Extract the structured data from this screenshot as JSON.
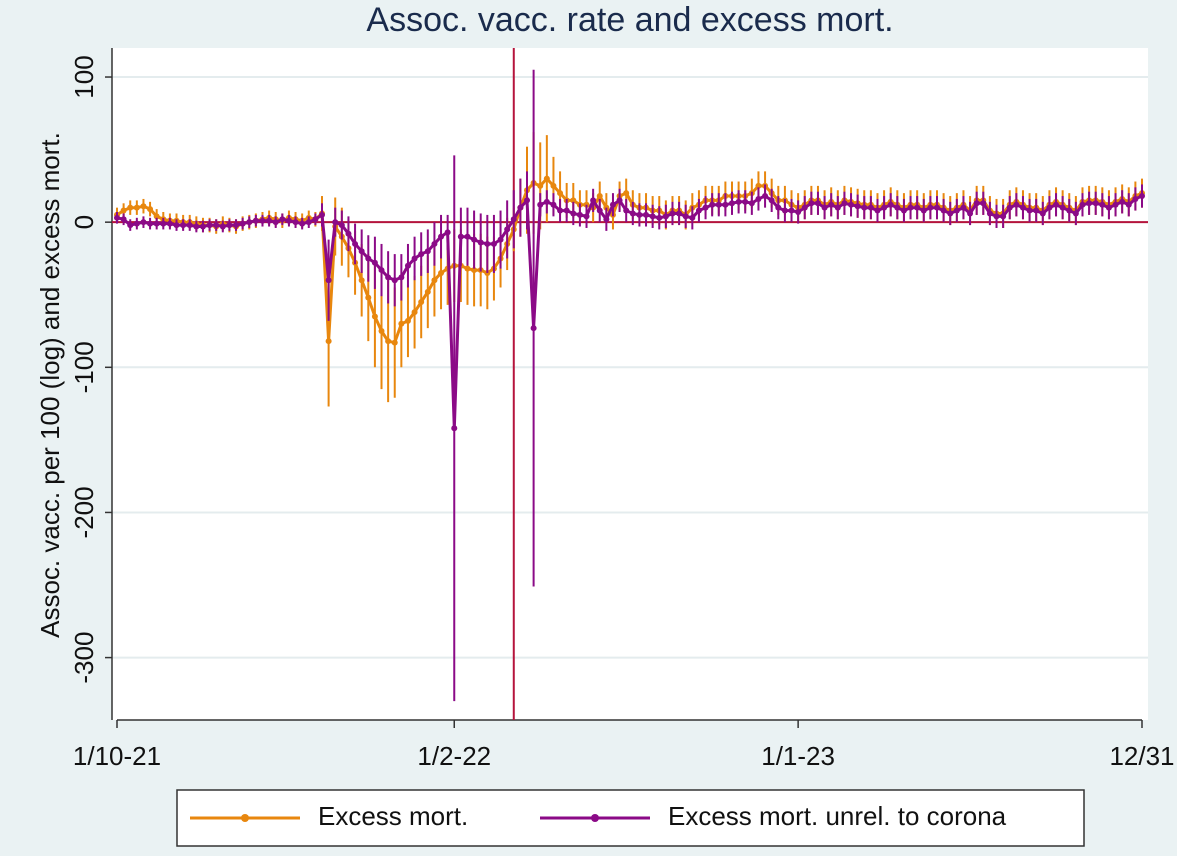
{
  "chart_data": {
    "type": "line",
    "title": "Assoc. vacc. rate and excess mort.",
    "ylabel": "Assoc. vacc. per 100 (log) and excess mort.",
    "categories": [
      "1/10-21",
      null,
      null,
      null,
      null,
      null,
      null,
      null,
      null,
      null,
      null,
      null,
      null,
      null,
      null,
      null,
      null,
      null,
      null,
      null,
      null,
      null,
      null,
      null,
      null,
      null,
      null,
      null,
      null,
      null,
      null,
      null,
      null,
      null,
      null,
      null,
      null,
      null,
      null,
      null,
      null,
      null,
      null,
      null,
      null,
      null,
      null,
      null,
      null,
      null,
      null,
      "1/2-22",
      null,
      null,
      null,
      null,
      null,
      null,
      null,
      null,
      null,
      null,
      null,
      null,
      null,
      null,
      null,
      null,
      null,
      null,
      null,
      null,
      null,
      null,
      null,
      null,
      null,
      null,
      null,
      null,
      null,
      null,
      null,
      null,
      null,
      null,
      null,
      null,
      null,
      null,
      null,
      null,
      null,
      null,
      null,
      null,
      null,
      null,
      null,
      null,
      null,
      null,
      null,
      "1/1-23",
      null,
      null,
      null,
      null,
      null,
      null,
      null,
      null,
      null,
      null,
      null,
      null,
      null,
      null,
      null,
      null,
      null,
      null,
      null,
      null,
      null,
      null,
      null,
      null,
      null,
      null,
      null,
      null,
      null,
      null,
      null,
      null,
      null,
      null,
      null,
      null,
      null,
      null,
      null,
      null,
      null,
      null,
      null,
      null,
      null,
      null,
      null,
      null,
      null,
      null,
      null,
      "12/31"
    ],
    "series": [
      {
        "name": "Excess mort.",
        "color": "#e8870e",
        "values": [
          5,
          8,
          10,
          10,
          11,
          9,
          4,
          2,
          1,
          1,
          0,
          0,
          -1,
          -2,
          -2,
          -3,
          -1,
          -2,
          -3,
          -1,
          0,
          1,
          2,
          3,
          2,
          1,
          3,
          2,
          1,
          3,
          2,
          6,
          -82,
          -3,
          -10,
          -18,
          -28,
          -40,
          -52,
          -65,
          -75,
          -82,
          -83,
          -70,
          -68,
          -62,
          -55,
          -48,
          -40,
          -35,
          -32,
          -30,
          -30,
          -32,
          -33,
          -33,
          -35,
          -32,
          -25,
          -15,
          -5,
          10,
          22,
          27,
          25,
          30,
          25,
          20,
          15,
          15,
          12,
          12,
          10,
          18,
          10,
          5,
          18,
          20,
          12,
          10,
          10,
          8,
          8,
          5,
          8,
          8,
          5,
          10,
          12,
          15,
          15,
          15,
          18,
          18,
          18,
          18,
          20,
          25,
          25,
          20,
          15,
          15,
          12,
          10,
          12,
          15,
          15,
          12,
          14,
          12,
          15,
          14,
          13,
          12,
          12,
          10,
          12,
          14,
          12,
          10,
          12,
          12,
          10,
          12,
          12,
          10,
          8,
          10,
          12,
          8,
          15,
          15,
          8,
          6,
          6,
          12,
          14,
          12,
          10,
          10,
          8,
          12,
          14,
          12,
          10,
          8,
          14,
          15,
          15,
          14,
          12,
          14,
          16,
          14,
          18,
          20
        ],
        "errors": [
          5,
          5,
          5,
          5,
          5,
          5,
          5,
          5,
          5,
          5,
          5,
          5,
          5,
          5,
          5,
          5,
          5,
          5,
          5,
          5,
          5,
          5,
          5,
          5,
          5,
          5,
          5,
          5,
          5,
          5,
          5,
          12,
          45,
          20,
          20,
          20,
          22,
          25,
          30,
          35,
          40,
          42,
          38,
          30,
          25,
          25,
          25,
          25,
          25,
          25,
          25,
          25,
          25,
          25,
          25,
          25,
          25,
          22,
          20,
          18,
          15,
          20,
          30,
          35,
          30,
          30,
          20,
          15,
          12,
          12,
          10,
          10,
          10,
          10,
          10,
          10,
          10,
          10,
          10,
          10,
          10,
          10,
          10,
          10,
          10,
          10,
          10,
          10,
          10,
          10,
          10,
          10,
          10,
          10,
          10,
          10,
          10,
          10,
          10,
          10,
          10,
          10,
          10,
          10,
          10,
          10,
          10,
          10,
          10,
          10,
          10,
          10,
          10,
          10,
          10,
          10,
          10,
          10,
          10,
          10,
          10,
          10,
          10,
          10,
          10,
          10,
          10,
          10,
          10,
          10,
          10,
          10,
          10,
          10,
          10,
          10,
          10,
          10,
          10,
          10,
          10,
          10,
          10,
          10,
          10,
          10,
          10,
          10,
          10,
          10,
          10,
          10,
          10,
          10,
          10,
          10
        ]
      },
      {
        "name": "Excess mort. unrel. to corona",
        "color": "#8b0a87",
        "values": [
          3,
          2,
          -2,
          -1,
          0,
          -1,
          -1,
          -1,
          -1,
          -2,
          -2,
          -2,
          -3,
          -3,
          -2,
          -2,
          -3,
          -2,
          -2,
          -1,
          0,
          1,
          1,
          1,
          0,
          2,
          1,
          0,
          -1,
          0,
          2,
          5,
          -40,
          0,
          -2,
          -8,
          -15,
          -20,
          -25,
          -28,
          -33,
          -38,
          -40,
          -38,
          -30,
          -25,
          -22,
          -20,
          -15,
          -10,
          -7,
          -142,
          -10,
          -10,
          -12,
          -14,
          -15,
          -15,
          -12,
          -5,
          2,
          10,
          15,
          -73,
          12,
          14,
          12,
          8,
          8,
          6,
          5,
          4,
          15,
          8,
          2,
          12,
          15,
          8,
          6,
          5,
          5,
          4,
          3,
          4,
          6,
          6,
          4,
          3,
          8,
          10,
          12,
          12,
          12,
          13,
          14,
          14,
          13,
          16,
          18,
          15,
          10,
          8,
          8,
          7,
          10,
          13,
          13,
          10,
          12,
          10,
          13,
          12,
          11,
          10,
          10,
          8,
          10,
          12,
          10,
          8,
          10,
          10,
          8,
          10,
          10,
          8,
          6,
          8,
          10,
          6,
          13,
          13,
          6,
          4,
          4,
          10,
          12,
          10,
          8,
          8,
          6,
          10,
          12,
          10,
          8,
          6,
          12,
          13,
          13,
          12,
          10,
          12,
          14,
          12,
          16,
          18
        ],
        "errors": [
          4,
          4,
          4,
          4,
          4,
          4,
          4,
          4,
          4,
          4,
          4,
          4,
          4,
          4,
          4,
          4,
          4,
          4,
          4,
          4,
          4,
          4,
          4,
          4,
          4,
          4,
          4,
          4,
          4,
          4,
          4,
          8,
          28,
          10,
          10,
          12,
          14,
          15,
          16,
          18,
          18,
          18,
          18,
          16,
          15,
          15,
          15,
          15,
          15,
          15,
          12,
          188,
          20,
          20,
          20,
          20,
          20,
          20,
          20,
          20,
          20,
          20,
          20,
          178,
          8,
          8,
          8,
          8,
          8,
          8,
          8,
          8,
          8,
          8,
          8,
          8,
          8,
          8,
          8,
          8,
          8,
          8,
          8,
          8,
          8,
          8,
          8,
          8,
          8,
          8,
          8,
          8,
          8,
          8,
          8,
          8,
          8,
          8,
          8,
          8,
          8,
          8,
          8,
          8,
          8,
          8,
          8,
          8,
          8,
          8,
          8,
          8,
          8,
          8,
          8,
          8,
          8,
          8,
          8,
          8,
          8,
          8,
          8,
          8,
          8,
          8,
          8,
          8,
          8,
          8,
          8,
          8,
          8,
          8,
          8,
          8,
          8,
          8,
          8,
          8,
          8,
          8,
          8,
          8,
          8,
          8,
          8,
          8,
          8,
          8,
          8,
          8,
          8,
          8,
          8,
          8
        ]
      }
    ],
    "ylim": [
      -343,
      120
    ],
    "yticks": [
      100,
      0,
      -100,
      -200,
      -300
    ],
    "grid": true,
    "hline": 0,
    "vline": 60,
    "reference_color": "#b5143c",
    "legend": "bottom"
  }
}
